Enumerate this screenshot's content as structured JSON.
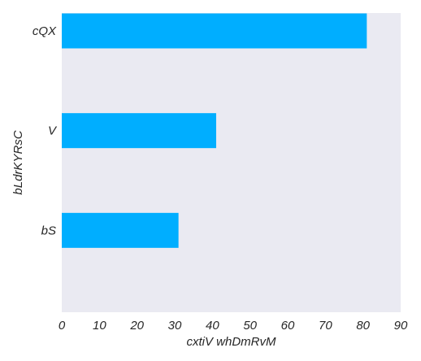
{
  "chart_data": {
    "type": "bar",
    "orientation": "horizontal",
    "categories": [
      "cQX",
      "V",
      "bS"
    ],
    "values": [
      81,
      41,
      31
    ],
    "xlabel": "cxtiV whDmRvM",
    "ylabel": "bLdrKYRsC",
    "xlim": [
      0,
      90
    ],
    "xticks": [
      "0",
      "10",
      "20",
      "30",
      "40",
      "50",
      "60",
      "70",
      "80",
      "90"
    ],
    "grid": false,
    "colors": {
      "bar": "#00AEFF",
      "plot_background": "#EAEAF2",
      "text": "#262626"
    }
  }
}
